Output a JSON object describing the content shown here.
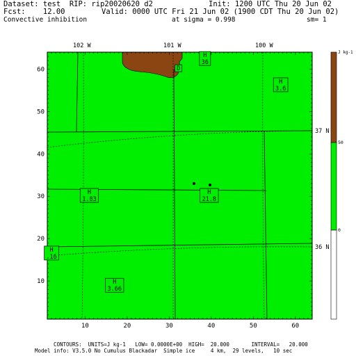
{
  "header": {
    "dataset": "Dataset: test  RIP: rip20020620 d2",
    "init": "Init: 1200 UTC Thu 20 Jun 02",
    "fcst": "Fcst:    12.00",
    "valid": "Valid: 0000 UTC Fri 21 Jun 02 (1900 CDT Thu 20 Jun 02)",
    "field": "Convective inhibition",
    "sigma": "at sigma = 0.998",
    "sm": "sm= 1"
  },
  "map": {
    "lon_labels": [
      "102 W",
      "101 W",
      "100 W"
    ],
    "lat_labels": [
      "37 N",
      "36 N"
    ],
    "x_ticks": [
      "10",
      "20",
      "30",
      "40",
      "50",
      "60"
    ],
    "y_ticks": [
      "10",
      "20",
      "30",
      "40",
      "50",
      "60"
    ],
    "fill_color": "#00ee00",
    "high_color": "#8b4513",
    "markers": [
      {
        "type": "H",
        "value": "36",
        "x": 38.5,
        "y": 62.5
      },
      {
        "type": "H",
        "value": "3.6",
        "x": 56.5,
        "y": 56.3
      },
      {
        "type": "H",
        "value": "1.83",
        "x": 11.0,
        "y": 30.2
      },
      {
        "type": "H",
        "value": "21.8",
        "x": 39.5,
        "y": 30.2
      },
      {
        "type": "H",
        "value": ".16",
        "x": 2.0,
        "y": 16.6
      },
      {
        "type": "H",
        "value": "3.66",
        "x": 17.0,
        "y": 9.0
      },
      {
        "type": "D",
        "value": "",
        "x": 32.2,
        "y": 60.2
      }
    ]
  },
  "colorbar": {
    "unit": "J kg-1",
    "labels": [
      "50",
      "0"
    ],
    "colors": [
      "#8b4513",
      "#00ee00",
      "#ffffff"
    ]
  },
  "footer": {
    "contours": "CONTOURS:  UNITS=J kg-1   LOW= 0.0000E+00  HIGH=  20.000       INTERVAL=   20.000",
    "model": "Model info: V3.5.0 No Cumulus Blackadar  Simple ice     4 km,  29 levels,   10 sec"
  }
}
